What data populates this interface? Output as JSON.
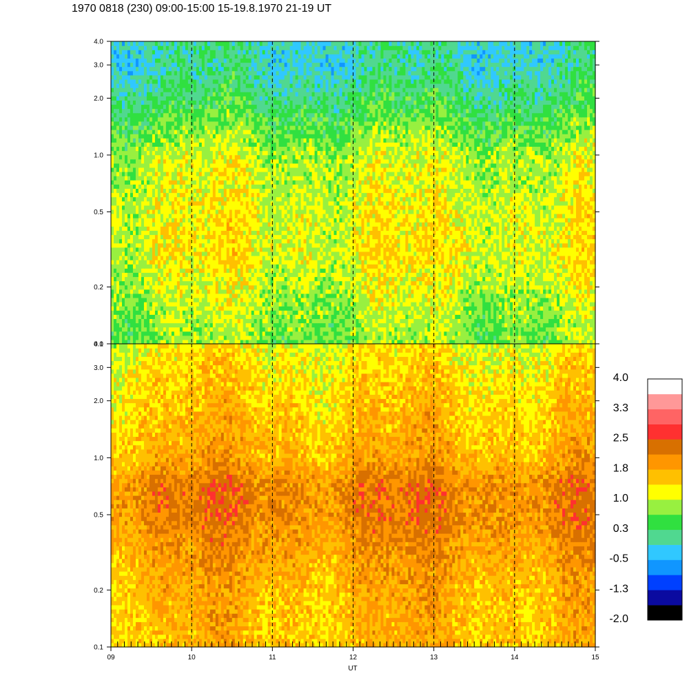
{
  "title": "1970 0818 (230) 09:00-15:00 15-19.8.1970  21-19 UT",
  "colors": {
    "background": "#ffffff",
    "axis": "#000000",
    "dashed_lines": "#000000"
  },
  "chart_data": [
    {
      "type": "heatmap",
      "panel": "top",
      "xlim": [
        9,
        15
      ],
      "ylim": [
        0.1,
        4.0
      ],
      "y_scale": "log",
      "y_ticks": [
        0.1,
        0.2,
        0.5,
        1.0,
        2.0,
        3.0,
        4.0
      ],
      "y_tick_labels": [
        "0.1",
        "0.2",
        "0.5",
        "1.0",
        "2.0",
        "3.0",
        "4.0"
      ],
      "dashed_hour_lines": [
        10,
        11,
        12,
        13,
        14
      ],
      "colorbar_range": [
        -2.0,
        4.0
      ],
      "profile": [
        {
          "y": 0.1,
          "value": 0.7
        },
        {
          "y": 0.2,
          "value": 1.0
        },
        {
          "y": 0.3,
          "value": 1.2
        },
        {
          "y": 0.5,
          "value": 1.15
        },
        {
          "y": 1.0,
          "value": 0.95
        },
        {
          "y": 1.5,
          "value": 0.55
        },
        {
          "y": 2.0,
          "value": 0.25
        },
        {
          "y": 3.0,
          "value": -0.05
        },
        {
          "y": 4.0,
          "value": 0.0
        }
      ]
    },
    {
      "type": "heatmap",
      "panel": "bottom",
      "xlim": [
        9,
        15
      ],
      "ylim": [
        0.1,
        4.0
      ],
      "y_scale": "log",
      "y_ticks": [
        0.1,
        0.2,
        0.5,
        1.0,
        2.0,
        3.0,
        4.0
      ],
      "y_tick_labels": [
        "0.1",
        "0.2",
        "0.5",
        "1.0",
        "2.0",
        "3.0",
        "4.0"
      ],
      "x_ticks": [
        9,
        10,
        11,
        12,
        13,
        14,
        15
      ],
      "x_tick_labels": [
        "09",
        "10",
        "11",
        "12",
        "13",
        "14",
        "15"
      ],
      "xlabel": "UT",
      "dashed_hour_lines": [
        10,
        11,
        12,
        13,
        14
      ],
      "colorbar_range": [
        -2.0,
        4.0
      ],
      "profile": [
        {
          "y": 0.1,
          "value": 1.6
        },
        {
          "y": 0.2,
          "value": 1.7
        },
        {
          "y": 0.35,
          "value": 1.95
        },
        {
          "y": 0.5,
          "value": 2.1
        },
        {
          "y": 0.7,
          "value": 2.15
        },
        {
          "y": 1.0,
          "value": 1.75
        },
        {
          "y": 2.0,
          "value": 1.5
        },
        {
          "y": 3.0,
          "value": 1.35
        },
        {
          "y": 4.0,
          "value": 1.2
        }
      ]
    }
  ],
  "colorbar": {
    "labels": [
      "4.0",
      "3.3",
      "2.5",
      "1.8",
      "1.0",
      "0.3",
      "-0.5",
      "-1.3",
      "-2.0"
    ],
    "colors": [
      "#000000",
      "#0a0aa0",
      "#0040ff",
      "#1096ff",
      "#30c8ff",
      "#50d890",
      "#30e040",
      "#98f040",
      "#ffff00",
      "#ffc000",
      "#ff9600",
      "#d87000",
      "#ff3030",
      "#ff6464",
      "#ff9898",
      "#ffffff"
    ]
  }
}
